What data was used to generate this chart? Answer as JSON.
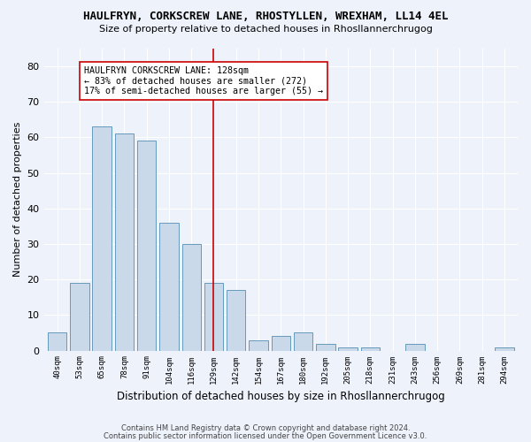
{
  "title": "HAULFRYN, CORKSCREW LANE, RHOSTYLLEN, WREXHAM, LL14 4EL",
  "subtitle": "Size of property relative to detached houses in Rhosllannerchrugog",
  "xlabel": "Distribution of detached houses by size in Rhosllannerchrugog",
  "ylabel": "Number of detached properties",
  "categories": [
    "40sqm",
    "53sqm",
    "65sqm",
    "78sqm",
    "91sqm",
    "104sqm",
    "116sqm",
    "129sqm",
    "142sqm",
    "154sqm",
    "167sqm",
    "180sqm",
    "192sqm",
    "205sqm",
    "218sqm",
    "231sqm",
    "243sqm",
    "256sqm",
    "269sqm",
    "281sqm",
    "294sqm"
  ],
  "values": [
    5,
    19,
    63,
    61,
    59,
    36,
    30,
    19,
    17,
    3,
    4,
    5,
    2,
    1,
    1,
    0,
    2,
    0,
    0,
    0,
    1
  ],
  "bar_color": "#c9d9ea",
  "bar_edge_color": "#6699bb",
  "vline_color": "#cc0000",
  "annotation_title": "HAULFRYN CORKSCREW LANE: 128sqm",
  "annotation_line1": "← 83% of detached houses are smaller (272)",
  "annotation_line2": "17% of semi-detached houses are larger (55) →",
  "annotation_box_color": "#ffffff",
  "annotation_box_edge_color": "#cc0000",
  "ylim": [
    0,
    85
  ],
  "yticks": [
    0,
    10,
    20,
    30,
    40,
    50,
    60,
    70,
    80
  ],
  "background_color": "#eef2fb",
  "grid_color": "#ffffff",
  "footer1": "Contains HM Land Registry data © Crown copyright and database right 2024.",
  "footer2": "Contains public sector information licensed under the Open Government Licence v3.0."
}
